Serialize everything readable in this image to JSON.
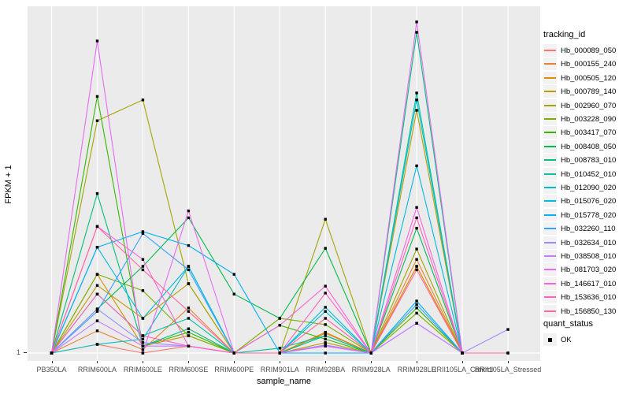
{
  "figure": {
    "y_axis": {
      "title": "FPKM + 1",
      "tick_label": "1"
    },
    "x_axis": {
      "title": "sample_name"
    }
  },
  "legend": {
    "tracking_title": "tracking_id",
    "quant_title": "quant_status",
    "quant_ok_label": "OK",
    "quant_ok_marker": "black-square-point"
  },
  "style": {
    "panel_bg": "#EBEBEB",
    "gridline_color": "#FFFFFF",
    "marker_color": "#000000",
    "axis_text_color": "#4D4D4D",
    "title_text_color": "#000000"
  },
  "chart_data": {
    "type": "line",
    "title": "",
    "xlabel": "sample_name",
    "ylabel": "FPKM + 1",
    "y_scale_note": "log-like axis; only labeled tick is 1 at the baseline; series values below are relative heights (0 = FPKM+1 = 1 baseline, 1 = top of panel), estimated from pixels",
    "y_tick_labels": [
      "1"
    ],
    "grid": "vertical white gridlines at each category plus baseline line",
    "legend_position": "right",
    "categories": [
      "PB350LA",
      "RRIM600LA",
      "RRIM600LE",
      "RRIM600SE",
      "RRIM600PE",
      "RRIM901LA",
      "RRIM928BA",
      "RRIM928LA",
      "RRIM928LE",
      "RRII105LA_Control",
      "RRII105LA_Stressed"
    ],
    "quant_status_values": [
      "OK"
    ],
    "series": [
      {
        "name": "Hb_000089_050",
        "color": "#F8766D",
        "values": [
          0,
          0.025,
          0,
          0.02,
          0,
          0,
          0.023,
          0,
          0.25,
          0,
          null
        ]
      },
      {
        "name": "Hb_000155_240",
        "color": "#EA8331",
        "values": [
          0,
          0.064,
          0.01,
          0.13,
          0,
          0,
          0.057,
          0,
          0.27,
          0,
          null
        ]
      },
      {
        "name": "Hb_000505_120",
        "color": "#D89000",
        "values": [
          0,
          0.227,
          0.02,
          0.05,
          0,
          0,
          0.06,
          0,
          0.25,
          0,
          null
        ]
      },
      {
        "name": "Hb_000789_140",
        "color": "#C09B00",
        "values": [
          0,
          0.195,
          0.1,
          0.2,
          0,
          0,
          0.03,
          0,
          0.7,
          0,
          null
        ]
      },
      {
        "name": "Hb_002960_070",
        "color": "#A3A500",
        "values": [
          0,
          0.67,
          0.73,
          0.2,
          0,
          0,
          0.386,
          0,
          0.3,
          0,
          null
        ]
      },
      {
        "name": "Hb_003228_090",
        "color": "#7CAE00",
        "values": [
          0,
          0.227,
          0.18,
          0.05,
          0,
          0.1,
          0.082,
          0,
          0.115,
          0,
          null
        ]
      },
      {
        "name": "Hb_003417_070",
        "color": "#39B600",
        "values": [
          0,
          0.74,
          0.02,
          0.06,
          0,
          0.08,
          0.04,
          0,
          0.13,
          0,
          null
        ]
      },
      {
        "name": "Hb_008408_050",
        "color": "#00BB4E",
        "values": [
          0,
          0.127,
          0.25,
          0.39,
          0.17,
          0.1,
          0.302,
          0,
          0.36,
          0,
          null
        ]
      },
      {
        "name": "Hb_008783_010",
        "color": "#00BF7D",
        "values": [
          0,
          0.46,
          0.02,
          0.07,
          0,
          0,
          0.05,
          0,
          0.925,
          0,
          null
        ]
      },
      {
        "name": "Hb_010452_010",
        "color": "#00C1A3",
        "values": [
          0,
          0.17,
          0.05,
          0.1,
          0,
          0.014,
          0.05,
          0,
          0.75,
          0,
          null
        ]
      },
      {
        "name": "Hb_012090_020",
        "color": "#00BFC4",
        "values": [
          0,
          0.025,
          0.04,
          0.25,
          0,
          0,
          0.12,
          0,
          0.73,
          0,
          null
        ]
      },
      {
        "name": "Hb_015076_020",
        "color": "#00BAE0",
        "values": [
          0,
          0.305,
          0.1,
          0.25,
          0,
          0,
          0.132,
          0,
          0.54,
          0,
          null
        ]
      },
      {
        "name": "Hb_015778_020",
        "color": "#00B0F6",
        "values": [
          0,
          0.305,
          0.35,
          0.31,
          0.227,
          0,
          0,
          0,
          0.15,
          0,
          null
        ]
      },
      {
        "name": "Hb_032260_110",
        "color": "#35A2FF",
        "values": [
          0,
          0.12,
          0.345,
          0.24,
          0,
          0,
          0.023,
          0,
          0.14,
          0,
          null
        ]
      },
      {
        "name": "Hb_032634_010",
        "color": "#9590FF",
        "values": [
          0,
          0.127,
          0.03,
          0.02,
          0,
          0,
          0.023,
          0,
          0.086,
          0,
          0.068
        ]
      },
      {
        "name": "Hb_038508_010",
        "color": "#C77CFF",
        "values": [
          0,
          0.093,
          0.02,
          0.02,
          0,
          0,
          0.02,
          0,
          0.086,
          0,
          null
        ]
      },
      {
        "name": "Hb_081703_020",
        "color": "#E76BF3",
        "values": [
          0,
          0.9,
          0,
          0.41,
          0,
          0,
          0.02,
          0,
          0.955,
          0,
          null
        ]
      },
      {
        "name": "Hb_146617_010",
        "color": "#FA62DB",
        "values": [
          0,
          0.365,
          0.27,
          0.02,
          0,
          0.08,
          0.193,
          0,
          0.42,
          0,
          null
        ]
      },
      {
        "name": "Hb_153636_010",
        "color": "#FF61C3",
        "values": [
          0,
          0.17,
          0.05,
          0.02,
          0,
          0,
          0.173,
          0,
          0.39,
          0,
          0
        ]
      },
      {
        "name": "Hb_156850_130",
        "color": "#FF67A4",
        "values": [
          0,
          0.365,
          0.24,
          0.12,
          0,
          0,
          0.1,
          0,
          0.24,
          0,
          0
        ]
      }
    ]
  }
}
